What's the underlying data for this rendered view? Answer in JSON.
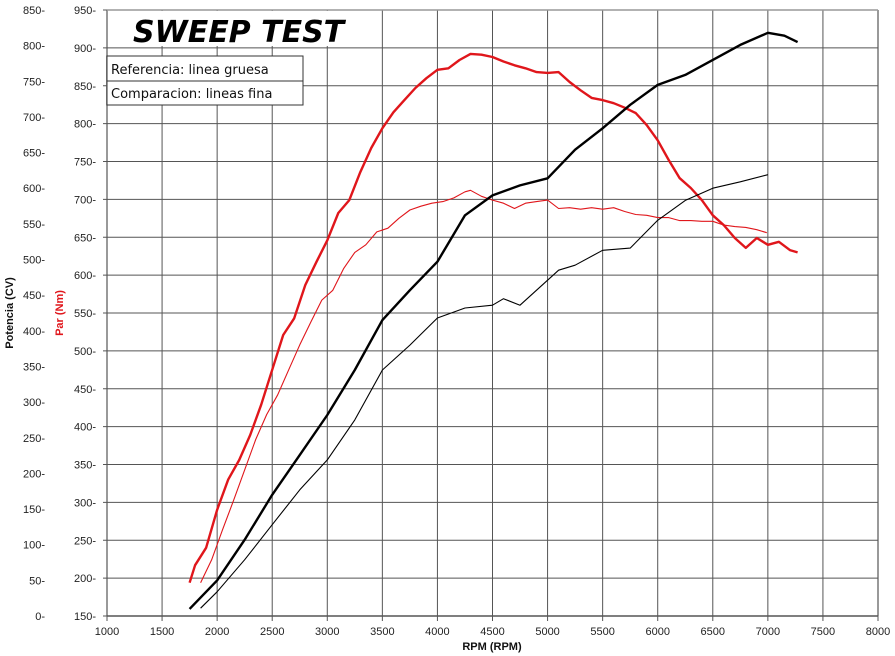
{
  "chart_data": {
    "type": "line",
    "title": "SWEEP TEST",
    "xlabel": "RPM (RPM)",
    "ylabel_left": "Potencia (CV)",
    "ylabel_right": "Par (Nm)",
    "xlim": [
      1000,
      8000
    ],
    "ylim_potencia": [
      0,
      850
    ],
    "ylim_par": [
      150,
      950
    ],
    "grid": true,
    "x_ticks": [
      "1000",
      "1500",
      "2000",
      "2500",
      "3000",
      "3500",
      "4000",
      "4500",
      "5000",
      "5500",
      "6000",
      "6500",
      "7000",
      "7500",
      "8000"
    ],
    "potencia_ticks": [
      "850-",
      "800-",
      "750-",
      "700-",
      "650-",
      "600-",
      "550-",
      "500-",
      "450-",
      "400-",
      "350-",
      "300-",
      "250-",
      "200-",
      "150-",
      "100-",
      "50-",
      "0-"
    ],
    "par_ticks": [
      "950-",
      "900-",
      "850-",
      "800-",
      "750-",
      "700-",
      "650-",
      "600-",
      "550-",
      "500-",
      "450-",
      "400-",
      "350-",
      "300-",
      "250-",
      "200-",
      "150-"
    ],
    "legend": {
      "placement": "top-left",
      "entries": [
        "Referencia: linea gruesa",
        "Comparacion: lineas fina"
      ]
    },
    "colors": {
      "potencia": "#000000",
      "par": "#e0161b",
      "grid": "#555555"
    },
    "series": [
      {
        "name": "Par referencia",
        "axis": "par",
        "style": "thick",
        "color": "#e0161b",
        "x": [
          1750,
          1800,
          1900,
          2000,
          2100,
          2200,
          2300,
          2400,
          2500,
          2600,
          2700,
          2800,
          2900,
          3000,
          3100,
          3200,
          3300,
          3400,
          3500,
          3600,
          3700,
          3800,
          3900,
          4000,
          4100,
          4200,
          4300,
          4400,
          4500,
          4600,
          4700,
          4800,
          4900,
          5000,
          5100,
          5200,
          5300,
          5400,
          5500,
          5600,
          5700,
          5800,
          5900,
          6000,
          6100,
          6200,
          6300,
          6400,
          6500,
          6600,
          6700,
          6800,
          6900,
          7000,
          7100,
          7200,
          7270
        ],
        "y": [
          194,
          217,
          240,
          290,
          330,
          356,
          389,
          429,
          475,
          521,
          543,
          587,
          617,
          646,
          682,
          699,
          736,
          768,
          794,
          815,
          831,
          847,
          860,
          871,
          873,
          884,
          892,
          891,
          888,
          882,
          877,
          873,
          868,
          867,
          868,
          855,
          844,
          834,
          831,
          827,
          821,
          814,
          798,
          778,
          752,
          728,
          715,
          699,
          679,
          666,
          649,
          636,
          649,
          640,
          644,
          633,
          630
        ]
      },
      {
        "name": "Par comparacion",
        "axis": "par",
        "style": "thin",
        "color": "#e0161b",
        "x": [
          1850,
          1950,
          2050,
          2150,
          2250,
          2350,
          2450,
          2550,
          2650,
          2750,
          2850,
          2950,
          3050,
          3150,
          3250,
          3350,
          3450,
          3550,
          3650,
          3750,
          3850,
          3950,
          4050,
          4150,
          4250,
          4300,
          4400,
          4500,
          4600,
          4700,
          4800,
          4900,
          5000,
          5100,
          5200,
          5300,
          5400,
          5500,
          5600,
          5700,
          5800,
          5900,
          6000,
          6100,
          6200,
          6300,
          6400,
          6500,
          6600,
          6700,
          6800,
          6900,
          6990
        ],
        "y": [
          194,
          224,
          264,
          303,
          343,
          383,
          416,
          442,
          475,
          508,
          538,
          567,
          580,
          609,
          630,
          640,
          657,
          662,
          675,
          686,
          691,
          695,
          697,
          702,
          710,
          712,
          704,
          699,
          695,
          688,
          695,
          697,
          699,
          688,
          689,
          687,
          689,
          687,
          689,
          684,
          680,
          679,
          676,
          676,
          672,
          672,
          671,
          671,
          666,
          664,
          663,
          660,
          656
        ]
      },
      {
        "name": "Potencia referencia",
        "axis": "potencia",
        "style": "thick",
        "color": "#000000",
        "x": [
          1750,
          2000,
          2250,
          2500,
          2750,
          3000,
          3250,
          3500,
          3750,
          4000,
          4250,
          4500,
          4750,
          5000,
          5250,
          5500,
          5750,
          6000,
          6250,
          6500,
          6750,
          7000,
          7150,
          7270
        ],
        "y": [
          10,
          50,
          107,
          170,
          226,
          282,
          345,
          415,
          457,
          497,
          562,
          590,
          604,
          614,
          654,
          684,
          717,
          745,
          759,
          780,
          801,
          818,
          814,
          805
        ]
      },
      {
        "name": "Potencia comparacion",
        "axis": "potencia",
        "style": "thin",
        "color": "#000000",
        "x": [
          1850,
          2000,
          2250,
          2500,
          2750,
          3000,
          3250,
          3500,
          3750,
          4000,
          4250,
          4500,
          4600,
          4750,
          5000,
          5100,
          5250,
          5500,
          5750,
          6000,
          6250,
          6500,
          6750,
          7000
        ],
        "y": [
          11,
          34,
          79,
          128,
          177,
          219,
          275,
          345,
          380,
          418,
          432,
          436,
          445,
          436,
          471,
          485,
          492,
          513,
          516,
          555,
          583,
          600,
          609,
          619
        ]
      }
    ]
  }
}
